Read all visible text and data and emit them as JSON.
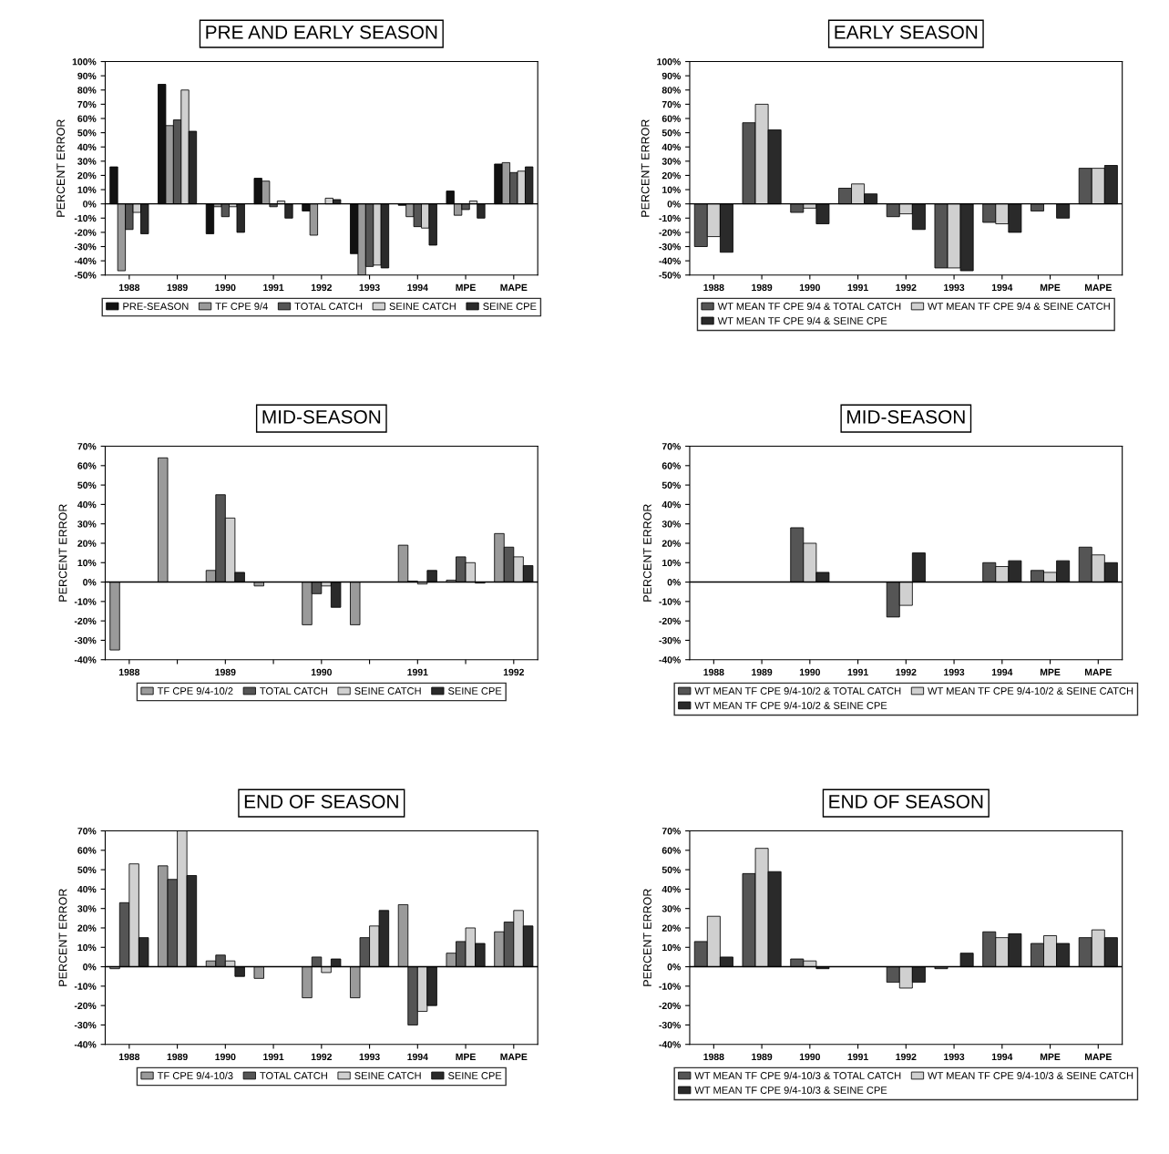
{
  "chart_data": [
    {
      "type": "bar",
      "title": "PRE AND EARLY SEASON",
      "ylabel": "PERCENT ERROR",
      "categories": [
        "1988",
        "1989",
        "1990",
        "1991",
        "1992",
        "1993",
        "1994",
        "MPE",
        "MAPE"
      ],
      "series": [
        {
          "name": "PRE-SEASON",
          "color": "#111111",
          "values": [
            26,
            84,
            -21,
            18,
            -5,
            -35,
            -1,
            9,
            28
          ]
        },
        {
          "name": "TF CPE 9/4",
          "color": "#9a9a9a",
          "values": [
            -47,
            55,
            -2,
            16,
            -22,
            -50,
            -9,
            -8,
            29
          ]
        },
        {
          "name": "TOTAL CATCH",
          "color": "#555555",
          "values": [
            -18,
            59,
            -9,
            -2,
            null,
            -44,
            -16,
            -4,
            22
          ]
        },
        {
          "name": "SEINE CATCH",
          "color": "#d0d0d0",
          "values": [
            -6,
            80,
            -2,
            2,
            4,
            -43,
            -17,
            2,
            23
          ]
        },
        {
          "name": "SEINE CPE",
          "color": "#2a2a2a",
          "values": [
            -21,
            51,
            -20,
            -10,
            3,
            -45,
            -29,
            -10,
            26
          ]
        }
      ],
      "ylim": [
        -50,
        100
      ],
      "yticks": [
        {
          "value": -50,
          "label": "-50%"
        },
        {
          "value": -40,
          "label": "-40%"
        },
        {
          "value": -30,
          "label": "-30%"
        },
        {
          "value": -20,
          "label": "-20%"
        },
        {
          "value": -10,
          "label": "-10%"
        },
        {
          "value": 0,
          "label": "0%"
        },
        {
          "value": 10,
          "label": "10%"
        },
        {
          "value": 20,
          "label": "20%"
        },
        {
          "value": 30,
          "label": "30%"
        },
        {
          "value": 40,
          "label": "40%"
        },
        {
          "value": 50,
          "label": "50%"
        },
        {
          "value": 60,
          "label": "60%"
        },
        {
          "value": 70,
          "label": "70%"
        },
        {
          "value": 80,
          "label": "80%"
        },
        {
          "value": 90,
          "label": "90%"
        },
        {
          "value": 100,
          "label": "100%"
        }
      ],
      "legend": "bottom"
    },
    {
      "type": "bar",
      "title": "EARLY SEASON",
      "ylabel": "PERCENT ERROR",
      "categories": [
        "1988",
        "1989",
        "1990",
        "1991",
        "1992",
        "1993",
        "1994",
        "MPE",
        "MAPE"
      ],
      "series": [
        {
          "name": "WT MEAN TF CPE 9/4 & TOTAL CATCH",
          "color": "#555555",
          "values": [
            -30,
            57,
            -6,
            11,
            -9,
            -45,
            -13,
            -5,
            25
          ]
        },
        {
          "name": "WT MEAN TF CPE 9/4 & SEINE CATCH",
          "color": "#d0d0d0",
          "values": [
            -23,
            70,
            -3,
            14,
            -7,
            -45,
            -14,
            null,
            25
          ]
        },
        {
          "name": "WT MEAN TF CPE 9/4 & SEINE CPE",
          "color": "#2a2a2a",
          "values": [
            -34,
            52,
            -14,
            7,
            -18,
            -47,
            -20,
            -10,
            27
          ]
        }
      ],
      "ylim": [
        -50,
        100
      ],
      "yticks": [
        {
          "value": -50,
          "label": "-50%"
        },
        {
          "value": -40,
          "label": "-40%"
        },
        {
          "value": -30,
          "label": "-30%"
        },
        {
          "value": -20,
          "label": "-20%"
        },
        {
          "value": -10,
          "label": "-10%"
        },
        {
          "value": 0,
          "label": "0%"
        },
        {
          "value": 10,
          "label": "10%"
        },
        {
          "value": 20,
          "label": "20%"
        },
        {
          "value": 30,
          "label": "30%"
        },
        {
          "value": 40,
          "label": "40%"
        },
        {
          "value": 50,
          "label": "50%"
        },
        {
          "value": 60,
          "label": "60%"
        },
        {
          "value": 70,
          "label": "70%"
        },
        {
          "value": 80,
          "label": "80%"
        },
        {
          "value": 90,
          "label": "90%"
        },
        {
          "value": 100,
          "label": "100%"
        }
      ],
      "legend": "bottom"
    },
    {
      "type": "bar",
      "title": "MID-SEASON",
      "ylabel": "PERCENT ERROR",
      "categories": [
        "1988",
        null,
        "1989",
        null,
        "1990",
        null,
        "1991",
        null,
        "1992"
      ],
      "series": [
        {
          "name": "TF CPE 9/4-10/2",
          "color": "#9a9a9a",
          "values": [
            -35,
            64,
            6,
            -2,
            -22,
            -22,
            19,
            1,
            25
          ]
        },
        {
          "name": "TOTAL CATCH",
          "color": "#555555",
          "values": [
            null,
            null,
            45,
            null,
            -6,
            null,
            0.5,
            13,
            18
          ]
        },
        {
          "name": "SEINE CATCH",
          "color": "#d0d0d0",
          "values": [
            null,
            null,
            33,
            null,
            -2,
            null,
            -1,
            10,
            13
          ]
        },
        {
          "name": "SEINE CPE",
          "color": "#2a2a2a",
          "values": [
            null,
            null,
            5,
            null,
            -13,
            null,
            6,
            -0.5,
            8.5
          ]
        }
      ],
      "ylim": [
        -40,
        70
      ],
      "yticks": [
        {
          "value": -40,
          "label": "-40%"
        },
        {
          "value": -30,
          "label": "-30%"
        },
        {
          "value": -20,
          "label": "-20%"
        },
        {
          "value": -10,
          "label": "-10%"
        },
        {
          "value": 0,
          "label": "0%"
        },
        {
          "value": 10,
          "label": "10%"
        },
        {
          "value": 20,
          "label": "20%"
        },
        {
          "value": 30,
          "label": "30%"
        },
        {
          "value": 40,
          "label": "40%"
        },
        {
          "value": 50,
          "label": "50%"
        },
        {
          "value": 60,
          "label": "60%"
        },
        {
          "value": 70,
          "label": "70%"
        }
      ],
      "legend": "bottom"
    },
    {
      "type": "bar",
      "title": "MID-SEASON",
      "ylabel": "PERCENT ERROR",
      "categories": [
        "1988",
        "1989",
        "1990",
        "1991",
        "1992",
        "1993",
        "1994",
        "MPE",
        "MAPE"
      ],
      "series": [
        {
          "name": "WT MEAN TF CPE 9/4-10/2 & TOTAL CATCH",
          "color": "#555555",
          "values": [
            null,
            null,
            28,
            null,
            -18,
            null,
            10,
            6,
            18
          ]
        },
        {
          "name": "WT MEAN TF CPE 9/4-10/2 & SEINE CATCH",
          "color": "#d0d0d0",
          "values": [
            null,
            null,
            20,
            null,
            -12,
            null,
            8,
            5,
            14
          ]
        },
        {
          "name": "WT MEAN TF CPE 9/4-10/2 & SEINE CPE",
          "color": "#2a2a2a",
          "values": [
            null,
            null,
            5,
            null,
            15,
            null,
            11,
            11,
            10
          ]
        }
      ],
      "ylim": [
        -40,
        70
      ],
      "yticks": [
        {
          "value": -40,
          "label": "-40%"
        },
        {
          "value": -30,
          "label": "-30%"
        },
        {
          "value": -20,
          "label": "-20%"
        },
        {
          "value": -10,
          "label": "-10%"
        },
        {
          "value": 0,
          "label": "0%"
        },
        {
          "value": 10,
          "label": "10%"
        },
        {
          "value": 20,
          "label": "20%"
        },
        {
          "value": 30,
          "label": "30%"
        },
        {
          "value": 40,
          "label": "40%"
        },
        {
          "value": 50,
          "label": "50%"
        },
        {
          "value": 60,
          "label": "60%"
        },
        {
          "value": 70,
          "label": "70%"
        }
      ],
      "legend": "bottom"
    },
    {
      "type": "bar",
      "title": "END OF SEASON",
      "ylabel": "PERCENT ERROR",
      "categories": [
        "1988",
        "1989",
        "1990",
        "1991",
        "1992",
        "1993",
        "1994",
        "MPE",
        "MAPE"
      ],
      "series": [
        {
          "name": "TF CPE 9/4-10/3",
          "color": "#9a9a9a",
          "values": [
            -1,
            52,
            3,
            -6,
            -16,
            -16,
            32,
            7,
            18
          ]
        },
        {
          "name": "TOTAL CATCH",
          "color": "#555555",
          "values": [
            33,
            45,
            6,
            null,
            5,
            15,
            -30,
            13,
            23
          ]
        },
        {
          "name": "SEINE CATCH",
          "color": "#d0d0d0",
          "values": [
            53,
            70,
            3,
            null,
            -3,
            21,
            -23,
            20,
            29
          ]
        },
        {
          "name": "SEINE CPE",
          "color": "#2a2a2a",
          "values": [
            15,
            47,
            -5,
            null,
            4,
            29,
            -20,
            12,
            21
          ]
        }
      ],
      "ylim": [
        -40,
        70
      ],
      "yticks": [
        {
          "value": -40,
          "label": "-40%"
        },
        {
          "value": -30,
          "label": "-30%"
        },
        {
          "value": -20,
          "label": "-20%"
        },
        {
          "value": -10,
          "label": "-10%"
        },
        {
          "value": 0,
          "label": "0%"
        },
        {
          "value": 10,
          "label": "10%"
        },
        {
          "value": 20,
          "label": "20%"
        },
        {
          "value": 30,
          "label": "30%"
        },
        {
          "value": 40,
          "label": "40%"
        },
        {
          "value": 50,
          "label": "50%"
        },
        {
          "value": 60,
          "label": "60%"
        },
        {
          "value": 70,
          "label": "70%"
        }
      ],
      "legend": "bottom"
    },
    {
      "type": "bar",
      "title": "END OF SEASON",
      "ylabel": "PERCENT ERROR",
      "categories": [
        "1988",
        "1989",
        "1990",
        "1991",
        "1992",
        "1993",
        "1994",
        "MPE",
        "MAPE"
      ],
      "series": [
        {
          "name": "WT MEAN TF CPE 9/4-10/3 & TOTAL CATCH",
          "color": "#555555",
          "values": [
            13,
            48,
            4,
            null,
            -8,
            -1,
            18,
            12,
            15
          ]
        },
        {
          "name": "WT MEAN TF CPE 9/4-10/3 & SEINE CATCH",
          "color": "#d0d0d0",
          "values": [
            26,
            61,
            3,
            null,
            -11,
            null,
            15,
            16,
            19
          ]
        },
        {
          "name": "WT MEAN TF CPE 9/4-10/3 & SEINE CPE",
          "color": "#2a2a2a",
          "values": [
            5,
            49,
            -1,
            null,
            -8,
            7,
            17,
            12,
            15
          ]
        }
      ],
      "ylim": [
        -40,
        70
      ],
      "yticks": [
        {
          "value": -40,
          "label": "-40%"
        },
        {
          "value": -30,
          "label": "-30%"
        },
        {
          "value": -20,
          "label": "-20%"
        },
        {
          "value": -10,
          "label": "-10%"
        },
        {
          "value": 0,
          "label": "0%"
        },
        {
          "value": 10,
          "label": "10%"
        },
        {
          "value": 20,
          "label": "20%"
        },
        {
          "value": 30,
          "label": "30%"
        },
        {
          "value": 40,
          "label": "40%"
        },
        {
          "value": 50,
          "label": "50%"
        },
        {
          "value": 60,
          "label": "60%"
        },
        {
          "value": 70,
          "label": "70%"
        }
      ],
      "legend": "bottom"
    }
  ]
}
